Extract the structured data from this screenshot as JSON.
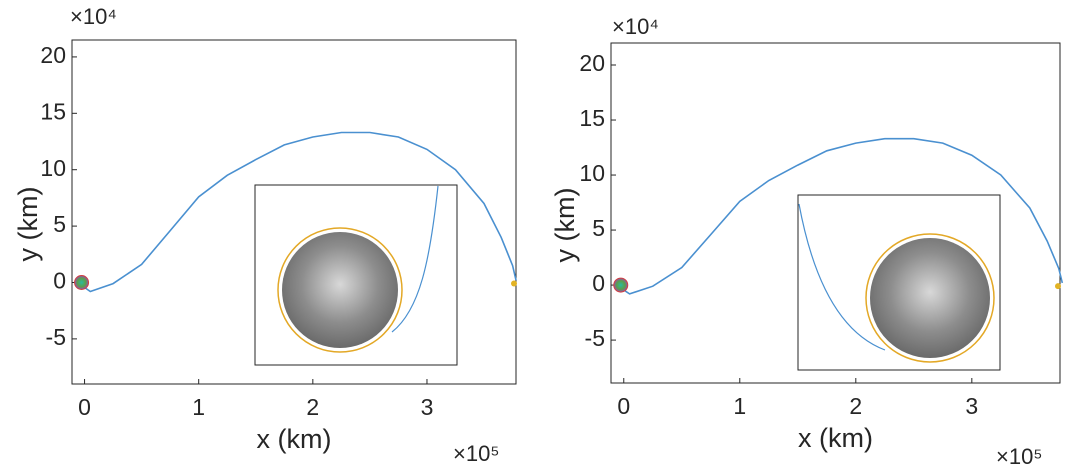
{
  "chart_data": [
    {
      "type": "line",
      "x_label": "x (km)",
      "y_label": "y (km)",
      "x_multiplier": "×10⁵",
      "y_multiplier": "×10⁴",
      "x": [
        -0.02,
        0.05,
        0.25,
        0.5,
        0.75,
        1,
        1.25,
        1.5,
        1.75,
        2,
        2.25,
        2.5,
        2.75,
        3,
        3.25,
        3.5,
        3.65,
        3.75,
        3.78
      ],
      "values": [
        -0.3,
        -0.8,
        -0.1,
        1.6,
        4.6,
        7.6,
        9.5,
        10.9,
        12.2,
        12.9,
        13.3,
        13.3,
        12.9,
        11.8,
        10.0,
        7.0,
        4.0,
        1.5,
        0.2
      ],
      "color": "#4a90d0",
      "xlim": [
        -0.11,
        3.78
      ],
      "xticks": [
        0,
        1,
        2,
        3
      ],
      "ylim": [
        -9,
        21.5
      ],
      "yticks": [
        -5,
        0,
        5,
        10,
        15,
        20
      ]
    },
    {
      "type": "line",
      "x_label": "x (km)",
      "y_label": "y (km)",
      "x_multiplier": "×10⁵",
      "y_multiplier": "×10⁴",
      "x": [
        -0.02,
        0.05,
        0.25,
        0.5,
        0.75,
        1,
        1.25,
        1.5,
        1.75,
        2,
        2.25,
        2.5,
        2.75,
        3,
        3.25,
        3.5,
        3.65,
        3.75,
        3.78
      ],
      "values": [
        -0.3,
        -0.8,
        -0.1,
        1.6,
        4.6,
        7.6,
        9.5,
        10.9,
        12.2,
        12.9,
        13.3,
        13.3,
        12.9,
        11.8,
        10.0,
        7.0,
        4.0,
        1.5,
        0.2
      ],
      "color": "#4a90d0",
      "xlim": [
        -0.11,
        3.76
      ],
      "xticks": [
        0,
        1,
        2,
        3
      ],
      "ylim": [
        -8.9,
        22
      ],
      "yticks": [
        -5,
        0,
        5,
        10,
        15,
        20
      ]
    }
  ]
}
